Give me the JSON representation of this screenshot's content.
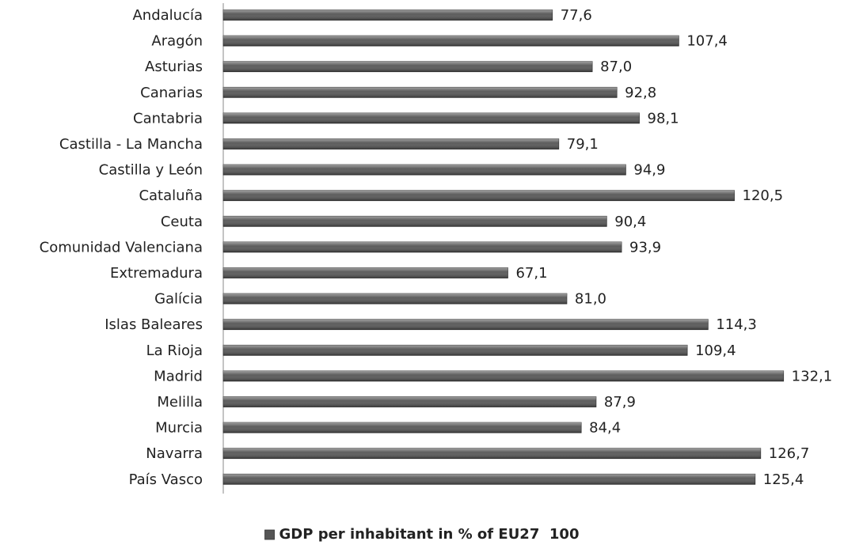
{
  "chart_data": {
    "type": "bar",
    "orientation": "horizontal",
    "categories": [
      "Andalucía",
      "Aragón",
      "Asturias",
      "Canarias",
      "Cantabria",
      "Castilla - La Mancha",
      "Castilla y León",
      "Cataluña",
      "Ceuta",
      "Comunidad Valenciana",
      "Extremadura",
      "Galícia",
      "Islas Baleares",
      "La Rioja",
      "Madrid",
      "Melilla",
      "Murcia",
      "Navarra",
      "País Vasco"
    ],
    "series": [
      {
        "name": "GDP per inhabitant in % of EU27  100",
        "color": "#555555",
        "values": [
          77.6,
          107.4,
          87.0,
          92.8,
          98.1,
          79.1,
          94.9,
          120.5,
          90.4,
          93.9,
          67.1,
          81.0,
          114.3,
          109.4,
          132.1,
          87.9,
          84.4,
          126.7,
          125.4
        ],
        "value_labels": [
          "77,6",
          "107,4",
          "87,0",
          "92,8",
          "98,1",
          "79,1",
          "94,9",
          "120,5",
          "90,4",
          "93,9",
          "67,1",
          "81,0",
          "114,3",
          "109,4",
          "132,1",
          "87,9",
          "84,4",
          "126,7",
          "125,4"
        ]
      }
    ],
    "xlim": [
      0,
      140
    ],
    "legend": "bottom"
  }
}
